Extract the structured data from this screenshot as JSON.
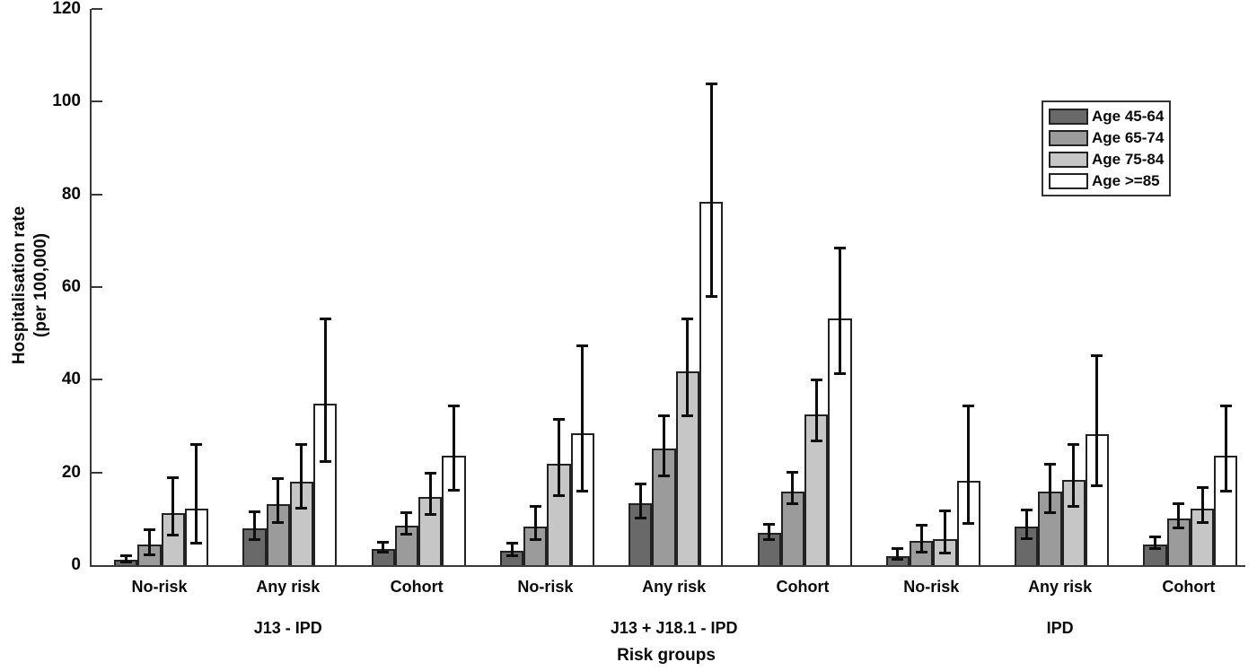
{
  "chart_data": {
    "type": "bar",
    "title": "",
    "xlabel": "Risk groups",
    "ylabel_line1": "Hospitalisation rate",
    "ylabel_line2": "(per 100,000)",
    "ylim": [
      0,
      120
    ],
    "yticks": [
      0,
      20,
      40,
      60,
      80,
      100,
      120
    ],
    "grid": false,
    "error_bars": true,
    "legend_position": "top-right",
    "series": [
      {
        "name": "Age 45-64",
        "color": "#696969"
      },
      {
        "name": "Age 65-74",
        "color": "#9b9b9b"
      },
      {
        "name": "Age 75-84",
        "color": "#c6c6c6"
      },
      {
        "name": "Age >=85",
        "color": "#ffffff"
      }
    ],
    "groups": [
      {
        "label": "J13 - IPD",
        "clusters": [
          {
            "label": "No-risk",
            "values": [
              1.2,
              4.4,
              11.2,
              12.2
            ],
            "ci_low": [
              0.3,
              1.9,
              6.2,
              4.4
            ],
            "ci_high": [
              2.3,
              7.9,
              19.1,
              26.4
            ]
          },
          {
            "label": "Any risk",
            "values": [
              7.9,
              13.1,
              18.0,
              34.9
            ],
            "ci_low": [
              5.2,
              8.9,
              12.0,
              22.0
            ],
            "ci_high": [
              11.8,
              18.9,
              26.4,
              53.5
            ]
          },
          {
            "label": "Cohort",
            "values": [
              3.5,
              8.5,
              14.8,
              23.6
            ],
            "ci_low": [
              2.5,
              6.3,
              10.7,
              15.8
            ],
            "ci_high": [
              5.3,
              11.6,
              20.2,
              34.6
            ]
          }
        ]
      },
      {
        "label": "J13 + J18.1 - IPD",
        "clusters": [
          {
            "label": "No-risk",
            "values": [
              3.1,
              8.3,
              21.8,
              28.4
            ],
            "ci_low": [
              1.7,
              5.2,
              14.7,
              15.6
            ],
            "ci_high": [
              5.0,
              12.9,
              31.7,
              47.7
            ]
          },
          {
            "label": "Any risk",
            "values": [
              13.3,
              25.1,
              41.9,
              78.4
            ],
            "ci_low": [
              9.8,
              18.9,
              32.0,
              57.7
            ],
            "ci_high": [
              17.8,
              32.6,
              53.5,
              104.2
            ]
          },
          {
            "label": "Cohort",
            "values": [
              7.0,
              15.8,
              32.6,
              53.3
            ],
            "ci_low": [
              5.2,
              12.9,
              26.6,
              41.1
            ],
            "ci_high": [
              9.1,
              20.3,
              40.3,
              68.7
            ]
          }
        ]
      },
      {
        "label": "IPD",
        "clusters": [
          {
            "label": "No-risk",
            "values": [
              1.9,
              5.2,
              5.6,
              18.1
            ],
            "ci_low": [
              1.0,
              2.5,
              2.3,
              8.7
            ],
            "ci_high": [
              3.9,
              8.9,
              12.0,
              34.7
            ]
          },
          {
            "label": "Any risk",
            "values": [
              8.3,
              15.8,
              18.3,
              28.2
            ],
            "ci_low": [
              5.4,
              11.0,
              12.4,
              16.8
            ],
            "ci_high": [
              12.2,
              22.0,
              26.4,
              45.4
            ]
          },
          {
            "label": "Cohort",
            "values": [
              4.4,
              10.0,
              12.2,
              23.6
            ],
            "ci_low": [
              3.3,
              7.7,
              8.9,
              15.6
            ],
            "ci_high": [
              6.4,
              13.5,
              17.0,
              34.6
            ]
          }
        ]
      }
    ]
  }
}
